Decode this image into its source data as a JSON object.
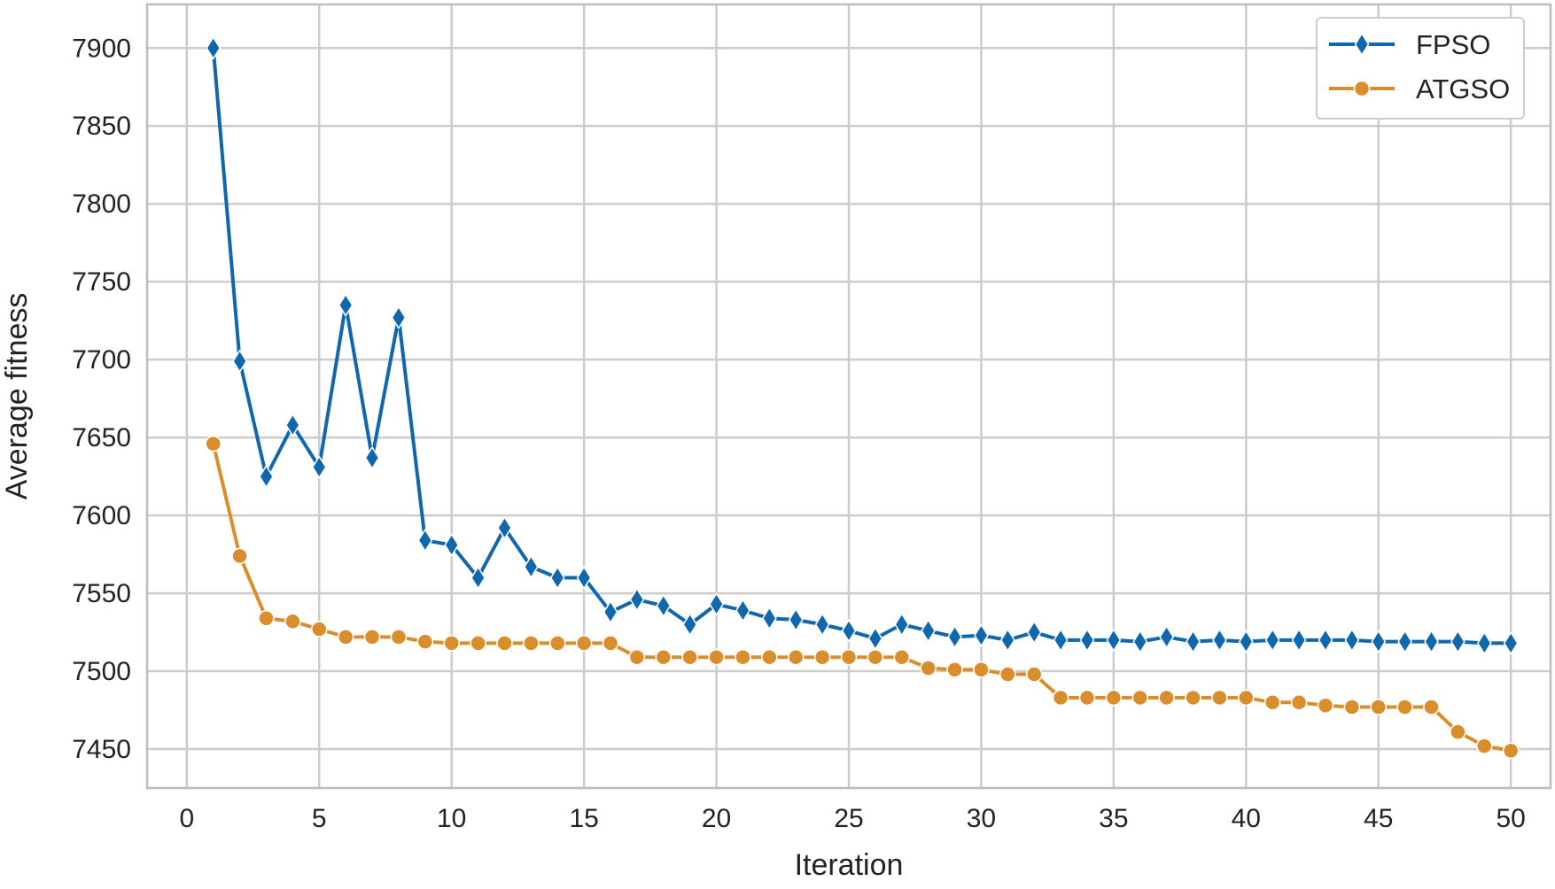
{
  "chart_data": {
    "type": "line",
    "title": "",
    "xlabel": "Iteration",
    "ylabel": "Average fitness",
    "xlim": [
      -1.5,
      51.5
    ],
    "ylim": [
      7425,
      7928
    ],
    "xticks": [
      0,
      5,
      10,
      15,
      20,
      25,
      30,
      35,
      40,
      45,
      50
    ],
    "yticks": [
      7450,
      7500,
      7550,
      7600,
      7650,
      7700,
      7750,
      7800,
      7850,
      7900
    ],
    "grid": true,
    "legend_position": "top-right",
    "x": [
      1,
      2,
      3,
      4,
      5,
      6,
      7,
      8,
      9,
      10,
      11,
      12,
      13,
      14,
      15,
      16,
      17,
      18,
      19,
      20,
      21,
      22,
      23,
      24,
      25,
      26,
      27,
      28,
      29,
      30,
      31,
      32,
      33,
      34,
      35,
      36,
      37,
      38,
      39,
      40,
      41,
      42,
      43,
      44,
      45,
      46,
      47,
      48,
      49,
      50
    ],
    "series": [
      {
        "name": "FPSO",
        "color": "#0f68ad",
        "marker": "diamond",
        "values": [
          7900,
          7699,
          7625,
          7658,
          7631,
          7735,
          7637,
          7727,
          7584,
          7581,
          7560,
          7592,
          7567,
          7560,
          7560,
          7538,
          7546,
          7542,
          7530,
          7543,
          7539,
          7534,
          7533,
          7530,
          7526,
          7521,
          7530,
          7526,
          7522,
          7523,
          7520,
          7525,
          7520,
          7520,
          7520,
          7519,
          7522,
          7519,
          7520,
          7519,
          7520,
          7520,
          7520,
          7520,
          7519,
          7519,
          7519,
          7519,
          7518,
          7518
        ]
      },
      {
        "name": "ATGSO",
        "color": "#d98e2b",
        "marker": "circle",
        "values": [
          7646,
          7574,
          7534,
          7532,
          7527,
          7522,
          7522,
          7522,
          7519,
          7518,
          7518,
          7518,
          7518,
          7518,
          7518,
          7518,
          7509,
          7509,
          7509,
          7509,
          7509,
          7509,
          7509,
          7509,
          7509,
          7509,
          7509,
          7502,
          7501,
          7501,
          7498,
          7498,
          7483,
          7483,
          7483,
          7483,
          7483,
          7483,
          7483,
          7483,
          7480,
          7480,
          7478,
          7477,
          7477,
          7477,
          7477,
          7461,
          7452,
          7449
        ]
      }
    ]
  }
}
